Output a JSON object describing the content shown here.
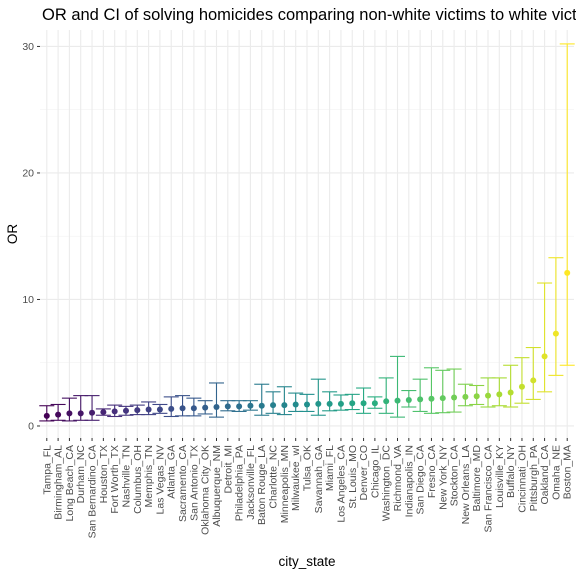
{
  "chart_data": {
    "type": "scatter",
    "title": "OR and CI of solving homicides comparing non-white victims to white victims",
    "xlabel": "city_state",
    "ylabel": "OR",
    "ylim": [
      -0.95,
      31.3
    ],
    "yticks": [
      0,
      10,
      20,
      30
    ],
    "grid": true,
    "legend": "none",
    "colormap": "viridis",
    "points": [
      {
        "city": "Tampa_FL",
        "or": 0.8,
        "lo": 0.4,
        "hi": 1.6
      },
      {
        "city": "Birmingham_AL",
        "or": 0.9,
        "lo": 0.45,
        "hi": 1.7
      },
      {
        "city": "Long Beach_CA",
        "or": 1.0,
        "lo": 0.4,
        "hi": 2.2
      },
      {
        "city": "Durham_NC",
        "or": 1.0,
        "lo": 0.45,
        "hi": 2.4
      },
      {
        "city": "San Bernardino_CA",
        "or": 1.05,
        "lo": 0.45,
        "hi": 2.4
      },
      {
        "city": "Houston_TX",
        "or": 1.1,
        "lo": 0.85,
        "hi": 1.35
      },
      {
        "city": "Fort Worth_TX",
        "or": 1.15,
        "lo": 0.75,
        "hi": 1.65
      },
      {
        "city": "Nashville_TN",
        "or": 1.2,
        "lo": 0.85,
        "hi": 1.55
      },
      {
        "city": "Columbus_OH",
        "or": 1.25,
        "lo": 0.9,
        "hi": 1.65
      },
      {
        "city": "Memphis_TN",
        "or": 1.3,
        "lo": 0.9,
        "hi": 1.9
      },
      {
        "city": "Las Vegas_NV",
        "or": 1.3,
        "lo": 1.0,
        "hi": 1.7
      },
      {
        "city": "Atlanta_GA",
        "or": 1.35,
        "lo": 0.75,
        "hi": 2.3
      },
      {
        "city": "Sacramento_CA",
        "or": 1.4,
        "lo": 0.8,
        "hi": 2.4
      },
      {
        "city": "San Antonio_TX",
        "or": 1.4,
        "lo": 0.8,
        "hi": 2.2
      },
      {
        "city": "Oklahoma City_OK",
        "or": 1.45,
        "lo": 0.95,
        "hi": 2.0
      },
      {
        "city": "Albuquerque_NM",
        "or": 1.5,
        "lo": 0.7,
        "hi": 3.4
      },
      {
        "city": "Detroit_MI",
        "or": 1.55,
        "lo": 1.2,
        "hi": 2.0
      },
      {
        "city": "Philadelphia_PA",
        "or": 1.55,
        "lo": 1.15,
        "hi": 2.0
      },
      {
        "city": "Jacksonville_FL",
        "or": 1.6,
        "lo": 1.25,
        "hi": 2.0
      },
      {
        "city": "Baton Rouge_LA",
        "or": 1.6,
        "lo": 0.85,
        "hi": 3.3
      },
      {
        "city": "Charlotte_NC",
        "or": 1.65,
        "lo": 1.0,
        "hi": 2.7
      },
      {
        "city": "Minneapolis_MN",
        "or": 1.65,
        "lo": 0.9,
        "hi": 3.1
      },
      {
        "city": "Milwaukee_wI",
        "or": 1.7,
        "lo": 1.15,
        "hi": 2.6
      },
      {
        "city": "Tulsa_OK",
        "or": 1.7,
        "lo": 1.15,
        "hi": 2.5
      },
      {
        "city": "Savannah_GA",
        "or": 1.75,
        "lo": 0.85,
        "hi": 3.7
      },
      {
        "city": "Miami_FL",
        "or": 1.75,
        "lo": 1.2,
        "hi": 2.7
      },
      {
        "city": "Los Angeles_CA",
        "or": 1.75,
        "lo": 1.25,
        "hi": 2.45
      },
      {
        "city": "St. Louis_MO",
        "or": 1.8,
        "lo": 1.3,
        "hi": 2.5
      },
      {
        "city": "Denver_CO",
        "or": 1.8,
        "lo": 1.0,
        "hi": 3.0
      },
      {
        "city": "Chicago_IL",
        "or": 1.8,
        "lo": 1.4,
        "hi": 2.3
      },
      {
        "city": "Washington_DC",
        "or": 1.95,
        "lo": 1.0,
        "hi": 3.8
      },
      {
        "city": "Richmond_VA",
        "or": 2.0,
        "lo": 0.7,
        "hi": 5.5
      },
      {
        "city": "Indianapolis_IN",
        "or": 2.05,
        "lo": 1.5,
        "hi": 2.8
      },
      {
        "city": "San Diego_CA",
        "or": 2.1,
        "lo": 1.15,
        "hi": 3.7
      },
      {
        "city": "Fresno_CA",
        "or": 2.15,
        "lo": 1.0,
        "hi": 4.6
      },
      {
        "city": "New York_NY",
        "or": 2.2,
        "lo": 1.05,
        "hi": 4.4
      },
      {
        "city": "Stockton_CA",
        "or": 2.25,
        "lo": 1.1,
        "hi": 4.5
      },
      {
        "city": "New Orleans_LA",
        "or": 2.3,
        "lo": 1.6,
        "hi": 3.3
      },
      {
        "city": "Baltimore_MD",
        "or": 2.35,
        "lo": 1.7,
        "hi": 3.2
      },
      {
        "city": "San Francisco_CA",
        "or": 2.4,
        "lo": 1.5,
        "hi": 3.8
      },
      {
        "city": "Louisville_KY",
        "or": 2.5,
        "lo": 1.6,
        "hi": 3.8
      },
      {
        "city": "Buffalo_NY",
        "or": 2.65,
        "lo": 1.5,
        "hi": 4.8
      },
      {
        "city": "Cincinnati_OH",
        "or": 3.1,
        "lo": 1.8,
        "hi": 5.4
      },
      {
        "city": "Pittsburgh_PA",
        "or": 3.6,
        "lo": 2.1,
        "hi": 6.2
      },
      {
        "city": "Oakland_CA",
        "or": 5.5,
        "lo": 2.7,
        "hi": 11.3
      },
      {
        "city": "Omaha_NE",
        "or": 7.3,
        "lo": 4.0,
        "hi": 13.3
      },
      {
        "city": "Boston_MA",
        "or": 12.1,
        "lo": 4.8,
        "hi": 30.2
      }
    ]
  }
}
